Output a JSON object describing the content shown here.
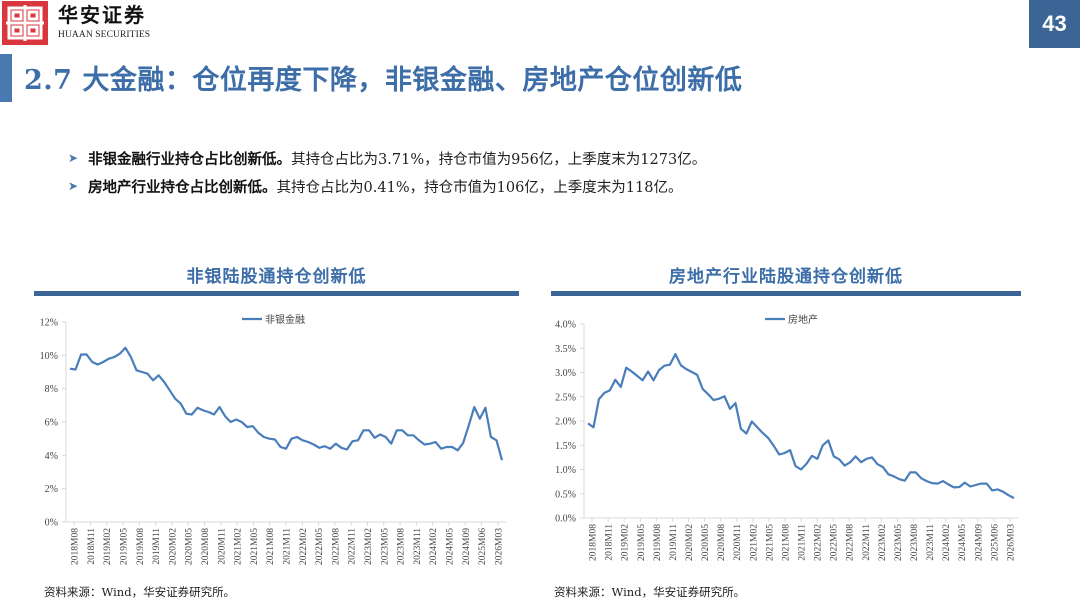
{
  "header": {
    "brand_cn": "华安证券",
    "brand_en": "HUAAN SECURITIES",
    "page_number": "43"
  },
  "page_title": "2.7 大金融：仓位再度下降，非银金融、房地产仓位创新低",
  "bullets": [
    {
      "bold": "非银金融行业持仓占比创新低。",
      "text": "其持仓占比为3.71%，持仓市值为956亿，上季度末为1273亿。"
    },
    {
      "bold": "房地产行业持仓占比创新低。",
      "text": "其持仓占比为0.41%，持仓市值为106亿，上季度末为118亿。"
    }
  ],
  "colors": {
    "accent": "#3d6ea8",
    "badge": "#3a6595",
    "logo_red": "#d9363e",
    "series": "#4a7ebb"
  },
  "left_panel": {
    "title": "非银陆股通持仓创新低",
    "source": "资料来源：Wind，华安证券研究所。"
  },
  "right_panel": {
    "title": "房地产行业陆股通持仓创新低",
    "source": "资料来源：Wind，华安证券研究所。"
  },
  "chart_data": [
    {
      "type": "line",
      "title": "非银陆股通持仓创新低",
      "xlabel": "",
      "ylabel": "",
      "ylim": [
        0,
        12
      ],
      "yticks": [
        "0%",
        "2%",
        "4%",
        "6%",
        "8%",
        "10%",
        "12%"
      ],
      "xtick_labels": [
        "2018M08",
        "2018M11",
        "2019M02",
        "2019M05",
        "2019M08",
        "2019M11",
        "2020M02",
        "2020M05",
        "2020M08",
        "2020M11",
        "2021M02",
        "2021M05",
        "2021M08",
        "2021M11",
        "2022M02",
        "2022M05",
        "2022M08",
        "2022M11",
        "2023M02",
        "2023M05",
        "2023M08",
        "2023M11",
        "2024M02",
        "2024M05",
        "2024M09",
        "2025M06",
        "2026M03"
      ],
      "legend": {
        "position": "top-center",
        "entries": [
          "非银金融"
        ]
      },
      "grid": false,
      "series": [
        {
          "name": "非银金融",
          "unit": "%",
          "values": [
            9.2,
            9.15,
            10.05,
            10.05,
            9.6,
            9.45,
            9.6,
            9.8,
            9.9,
            10.1,
            10.45,
            9.9,
            9.1,
            9.0,
            8.9,
            8.5,
            8.8,
            8.4,
            7.9,
            7.4,
            7.1,
            6.5,
            6.45,
            6.85,
            6.7,
            6.6,
            6.45,
            6.9,
            6.35,
            6.0,
            6.15,
            6.0,
            5.7,
            5.75,
            5.35,
            5.1,
            5.0,
            4.95,
            4.5,
            4.4,
            5.0,
            5.1,
            4.9,
            4.8,
            4.65,
            4.45,
            4.55,
            4.4,
            4.7,
            4.45,
            4.35,
            4.85,
            4.9,
            5.5,
            5.5,
            5.05,
            5.25,
            5.1,
            4.7,
            5.5,
            5.5,
            5.2,
            5.2,
            4.9,
            4.65,
            4.7,
            4.8,
            4.4,
            4.5,
            4.5,
            4.3,
            4.75,
            5.8,
            6.9,
            6.2,
            6.85,
            5.1,
            4.9,
            3.71
          ]
        }
      ]
    },
    {
      "type": "line",
      "title": "房地产行业陆股通持仓创新低",
      "xlabel": "",
      "ylabel": "",
      "ylim": [
        0,
        4
      ],
      "yticks": [
        "0.0%",
        "0.5%",
        "1.0%",
        "1.5%",
        "2.0%",
        "2.5%",
        "3.0%",
        "3.5%",
        "4.0%"
      ],
      "xtick_labels": [
        "2018M08",
        "2018M11",
        "2019M02",
        "2019M05",
        "2019M08",
        "2019M11",
        "2020M02",
        "2020M05",
        "2020M08",
        "2020M11",
        "2021M02",
        "2021M05",
        "2021M08",
        "2021M11",
        "2022M02",
        "2022M05",
        "2022M08",
        "2022M11",
        "2023M02",
        "2023M05",
        "2023M08",
        "2023M11",
        "2024M02",
        "2024M05",
        "2024M09",
        "2025M06",
        "2026M03"
      ],
      "legend": {
        "position": "top-center",
        "entries": [
          "房地产"
        ]
      },
      "grid": false,
      "series": [
        {
          "name": "房地产",
          "unit": "%",
          "values": [
            1.95,
            1.87,
            2.45,
            2.58,
            2.63,
            2.85,
            2.7,
            3.1,
            3.02,
            2.93,
            2.84,
            3.02,
            2.84,
            3.05,
            3.14,
            3.16,
            3.38,
            3.15,
            3.07,
            3.01,
            2.95,
            2.66,
            2.55,
            2.43,
            2.46,
            2.51,
            2.25,
            2.37,
            1.84,
            1.74,
            1.99,
            1.87,
            1.75,
            1.65,
            1.49,
            1.31,
            1.34,
            1.4,
            1.07,
            1.0,
            1.12,
            1.28,
            1.22,
            1.5,
            1.6,
            1.27,
            1.21,
            1.08,
            1.15,
            1.27,
            1.15,
            1.22,
            1.25,
            1.11,
            1.05,
            0.9,
            0.86,
            0.8,
            0.77,
            0.94,
            0.94,
            0.82,
            0.76,
            0.72,
            0.71,
            0.76,
            0.69,
            0.63,
            0.64,
            0.73,
            0.65,
            0.68,
            0.71,
            0.71,
            0.57,
            0.59,
            0.54,
            0.47,
            0.41
          ]
        }
      ]
    }
  ]
}
